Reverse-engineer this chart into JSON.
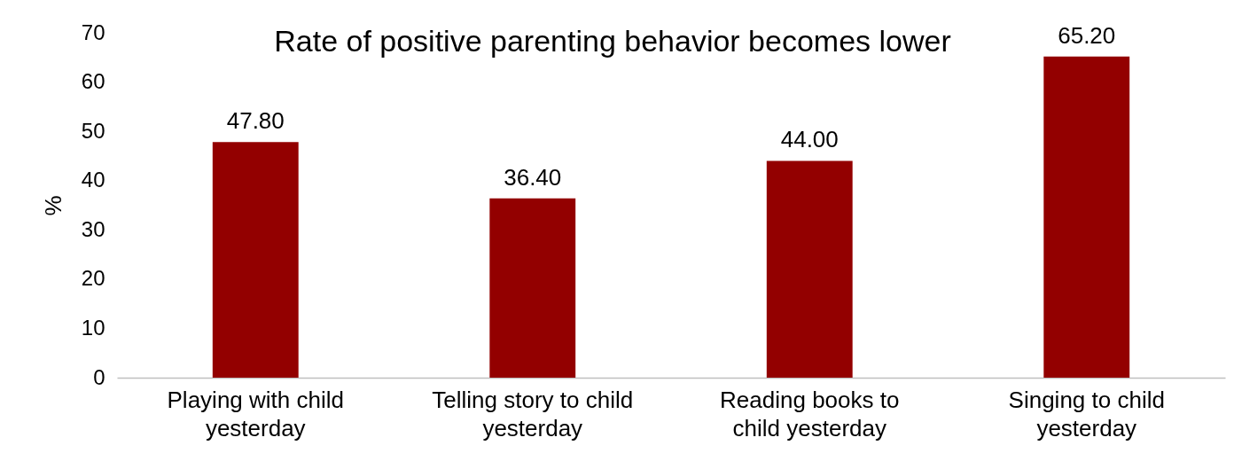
{
  "chart_data": {
    "type": "bar",
    "title": "Rate of positive parenting behavior becomes lower",
    "ylabel": "%",
    "categories": [
      "Playing with child yesterday",
      "Telling story to child yesterday",
      "Reading books to child yesterday",
      "Singing to child yesterday"
    ],
    "values": [
      47.8,
      36.4,
      44.0,
      65.2
    ],
    "value_labels": [
      "47.80",
      "36.40",
      "44.00",
      "65.20"
    ],
    "color": "#930000",
    "ylim": [
      0,
      70
    ],
    "yticks": [
      0,
      10,
      20,
      30,
      40,
      50,
      60,
      70
    ]
  }
}
